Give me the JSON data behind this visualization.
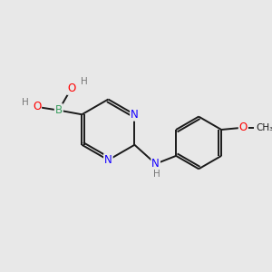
{
  "background_color": "#e8e8e8",
  "bond_color": "#1a1a1a",
  "bond_width": 1.4,
  "atom_colors": {
    "C": "#1a1a1a",
    "N": "#1400ff",
    "B": "#3a9e5f",
    "O": "#ff0000",
    "H": "#777777"
  },
  "font_size": 8.5,
  "fig_size": [
    3.0,
    3.0
  ],
  "dpi": 100,
  "xlim": [
    0.0,
    6.0
  ],
  "ylim": [
    0.3,
    5.5
  ]
}
